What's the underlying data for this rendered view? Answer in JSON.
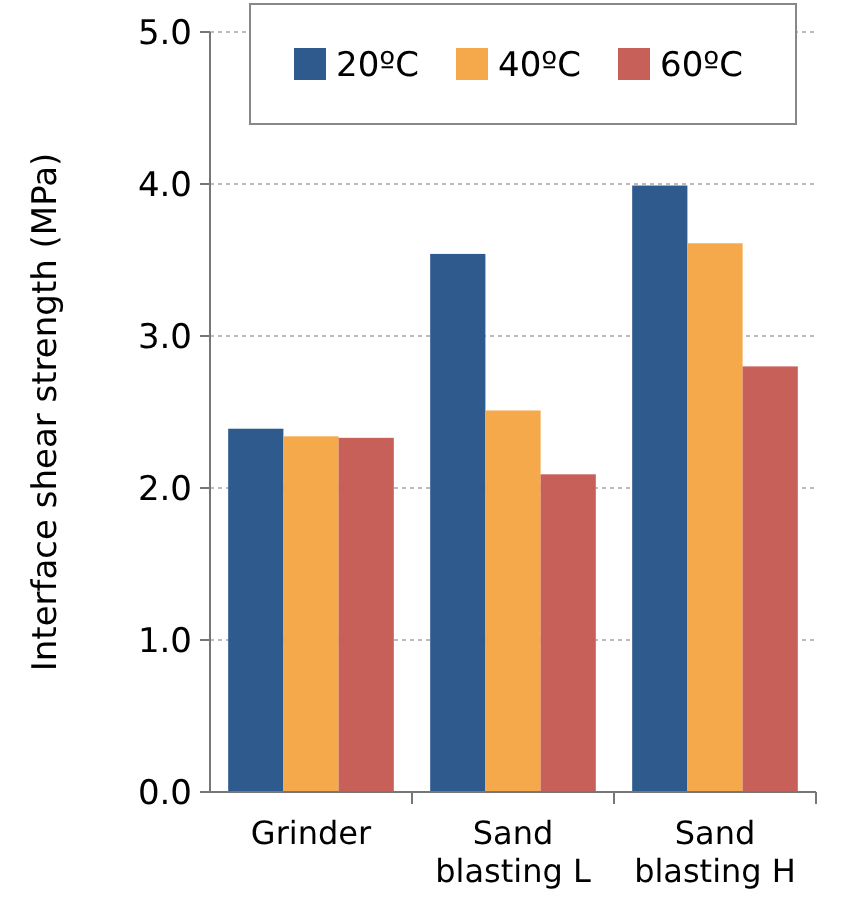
{
  "chart_data": {
    "type": "bar",
    "ylabel": "Interface shear strength (MPa)",
    "categories": [
      "Grinder",
      "Sand blasting L",
      "Sand blasting H"
    ],
    "series": [
      {
        "name": "20ºC",
        "color": "#2e5a8e",
        "values": [
          2.39,
          3.54,
          3.99
        ]
      },
      {
        "name": "40ºC",
        "color": "#f6a94b",
        "values": [
          2.34,
          2.51,
          3.61
        ]
      },
      {
        "name": "60ºC",
        "color": "#c8605a",
        "values": [
          2.33,
          2.09,
          2.8
        ]
      }
    ],
    "ylim": [
      0,
      5
    ],
    "yticks": [
      {
        "value": 0,
        "label": "0.0"
      },
      {
        "value": 1,
        "label": "1.0"
      },
      {
        "value": 2,
        "label": "2.0"
      },
      {
        "value": 3,
        "label": "3.0"
      },
      {
        "value": 4,
        "label": "4.0"
      },
      {
        "value": 5,
        "label": "5.0"
      }
    ],
    "grid": "y",
    "legend": "top"
  }
}
